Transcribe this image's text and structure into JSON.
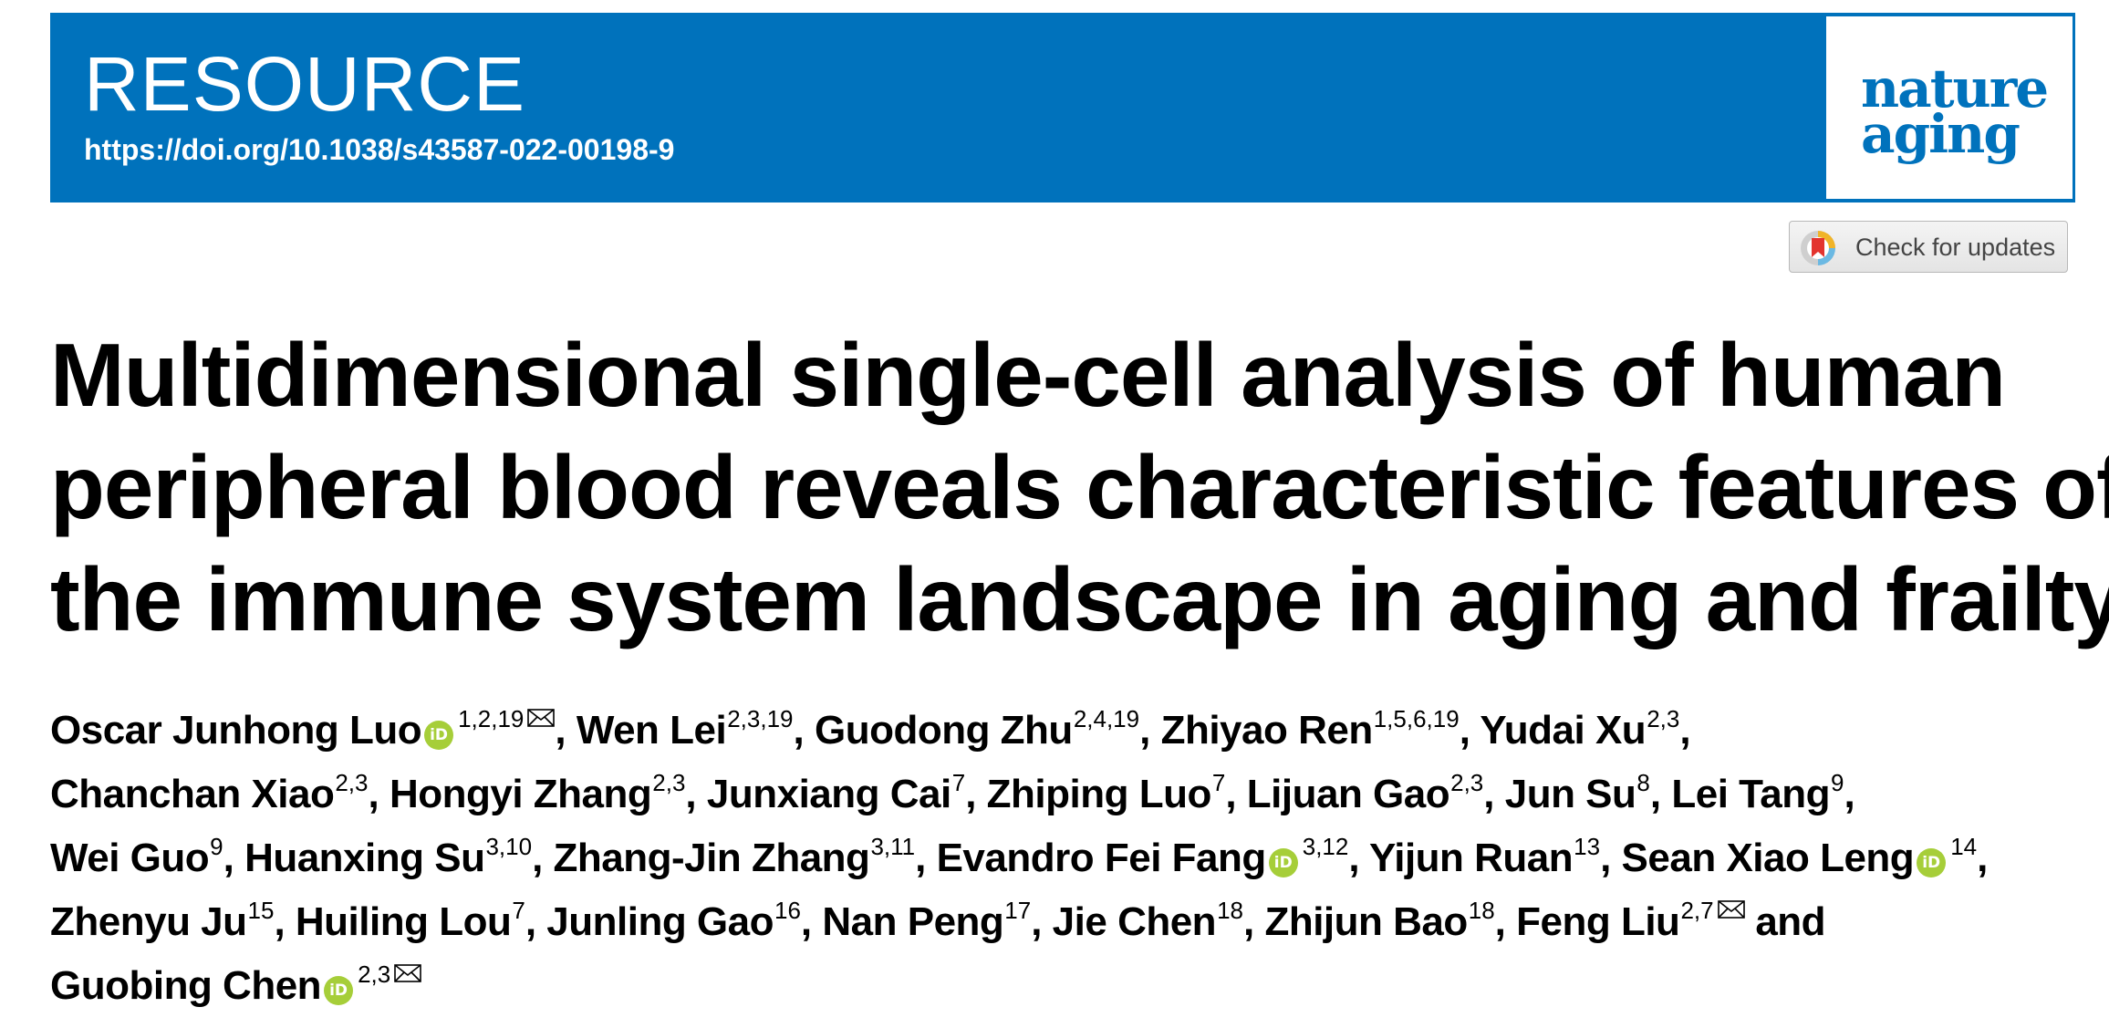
{
  "header": {
    "article_type": "RESOURCE",
    "doi": "https://doi.org/10.1038/s43587-022-00198-9",
    "journal_logo_line1": "nature",
    "journal_logo_line2": "aging",
    "check_updates_label": "Check for updates",
    "banner_color": "#0072bc",
    "orcid_color": "#a6ce39"
  },
  "title_lines": [
    "Multidimensional single-cell analysis of human",
    "peripheral blood reveals characteristic features of",
    "the immune system landscape in aging and frailty"
  ],
  "author_lines": [
    [
      {
        "name": "Oscar Junhong Luo",
        "aff": "1,2,19",
        "orcid": true,
        "mail": true,
        "sep": ", "
      },
      {
        "name": "Wen Lei",
        "aff": "2,3,19",
        "sep": ", "
      },
      {
        "name": "Guodong Zhu",
        "aff": "2,4,19",
        "sep": ", "
      },
      {
        "name": "Zhiyao Ren",
        "aff": "1,5,6,19",
        "sep": ", "
      },
      {
        "name": "Yudai Xu",
        "aff": "2,3",
        "sep": ","
      }
    ],
    [
      {
        "name": "Chanchan Xiao",
        "aff": "2,3",
        "sep": ", "
      },
      {
        "name": "Hongyi Zhang",
        "aff": "2,3",
        "sep": ", "
      },
      {
        "name": "Junxiang Cai",
        "aff": "7",
        "sep": ", "
      },
      {
        "name": "Zhiping Luo",
        "aff": "7",
        "sep": ", "
      },
      {
        "name": "Lijuan Gao",
        "aff": "2,3",
        "sep": ", "
      },
      {
        "name": "Jun Su",
        "aff": "8",
        "sep": ", "
      },
      {
        "name": "Lei Tang",
        "aff": "9",
        "sep": ","
      }
    ],
    [
      {
        "name": "Wei Guo",
        "aff": "9",
        "sep": ", "
      },
      {
        "name": "Huanxing Su",
        "aff": "3,10",
        "sep": ", "
      },
      {
        "name": "Zhang-Jin Zhang",
        "aff": "3,11",
        "sep": ", "
      },
      {
        "name": "Evandro Fei Fang",
        "aff": "3,12",
        "orcid": true,
        "sep": ", "
      },
      {
        "name": "Yijun Ruan",
        "aff": "13",
        "sep": ", "
      },
      {
        "name": "Sean Xiao Leng",
        "aff": "14",
        "orcid": true,
        "sep": ","
      }
    ],
    [
      {
        "name": "Zhenyu Ju",
        "aff": "15",
        "sep": ", "
      },
      {
        "name": "Huiling Lou",
        "aff": "7",
        "sep": ", "
      },
      {
        "name": "Junling Gao",
        "aff": "16",
        "sep": ", "
      },
      {
        "name": "Nan Peng",
        "aff": "17",
        "sep": ", "
      },
      {
        "name": "Jie Chen",
        "aff": "18",
        "sep": ", "
      },
      {
        "name": "Zhijun Bao",
        "aff": "18",
        "sep": ", "
      },
      {
        "name": "Feng Liu",
        "aff": "2,7",
        "mail": true,
        "sep": " and"
      }
    ],
    [
      {
        "name": "Guobing Chen",
        "aff": "2,3",
        "orcid": true,
        "mail": true,
        "sep": ""
      }
    ]
  ]
}
